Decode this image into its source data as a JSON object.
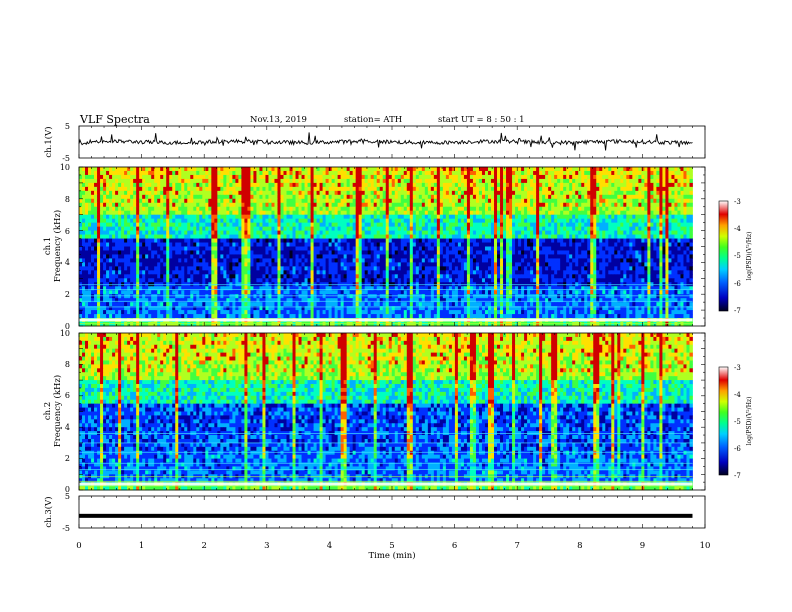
{
  "header": {
    "title": "VLF  Spectra",
    "date": "Nov.13, 2019",
    "station": "station= ATH",
    "start": "start  UT  =   8  : 50 : 1"
  },
  "chart_data": {
    "type": "heatmap",
    "panels": [
      {
        "id": "ch1-voltage",
        "type": "line",
        "ylabel": "ch.1(V)",
        "yticks": [
          5,
          -5
        ],
        "ylim": [
          -5,
          5
        ],
        "baseline": 0,
        "series_color": "#000000"
      },
      {
        "id": "ch1-spectrogram",
        "type": "heatmap",
        "ylabel": "ch.1\nFrequency (kHz)",
        "ylabel_lines": [
          "ch.1",
          "Frequency  (kHz)"
        ],
        "yticks": [
          0,
          2,
          4,
          6,
          8,
          10
        ],
        "ylim": [
          0,
          10
        ],
        "colorbar": {
          "label": "log(PSD)(V²/Hz)",
          "ticks": [
            -3,
            -4,
            -5,
            -6,
            -7
          ],
          "range": [
            -7,
            -3
          ]
        }
      },
      {
        "id": "ch2-spectrogram",
        "type": "heatmap",
        "ylabel": "ch.2\nFrequency (kHz)",
        "ylabel_lines": [
          "ch.2",
          "Frequency  (kHz)"
        ],
        "yticks": [
          0,
          2,
          4,
          6,
          8,
          10
        ],
        "ylim": [
          0,
          10
        ],
        "colorbar": {
          "label": "log(PSD)(V²/Hz)",
          "ticks": [
            -3,
            -4,
            -5,
            -6,
            -7
          ],
          "range": [
            -7,
            -3
          ]
        }
      },
      {
        "id": "ch3-voltage",
        "type": "line",
        "ylabel": "ch.3(V)",
        "yticks": [
          5,
          -5
        ],
        "ylim": [
          -5,
          5
        ],
        "constant_value": -1.2,
        "series_color": "#000000"
      }
    ],
    "x": {
      "label": "Time  (min)",
      "ticks": [
        0,
        1,
        2,
        3,
        4,
        5,
        6,
        7,
        8,
        9,
        10
      ],
      "range": [
        0,
        10
      ],
      "data_end": 9.8
    },
    "colormap": [
      "#000020",
      "#0000a0",
      "#0030ff",
      "#00b0ff",
      "#00ffc0",
      "#40ff40",
      "#b0ff20",
      "#ffe000",
      "#ff6000",
      "#d00000",
      "#ffffff"
    ]
  }
}
